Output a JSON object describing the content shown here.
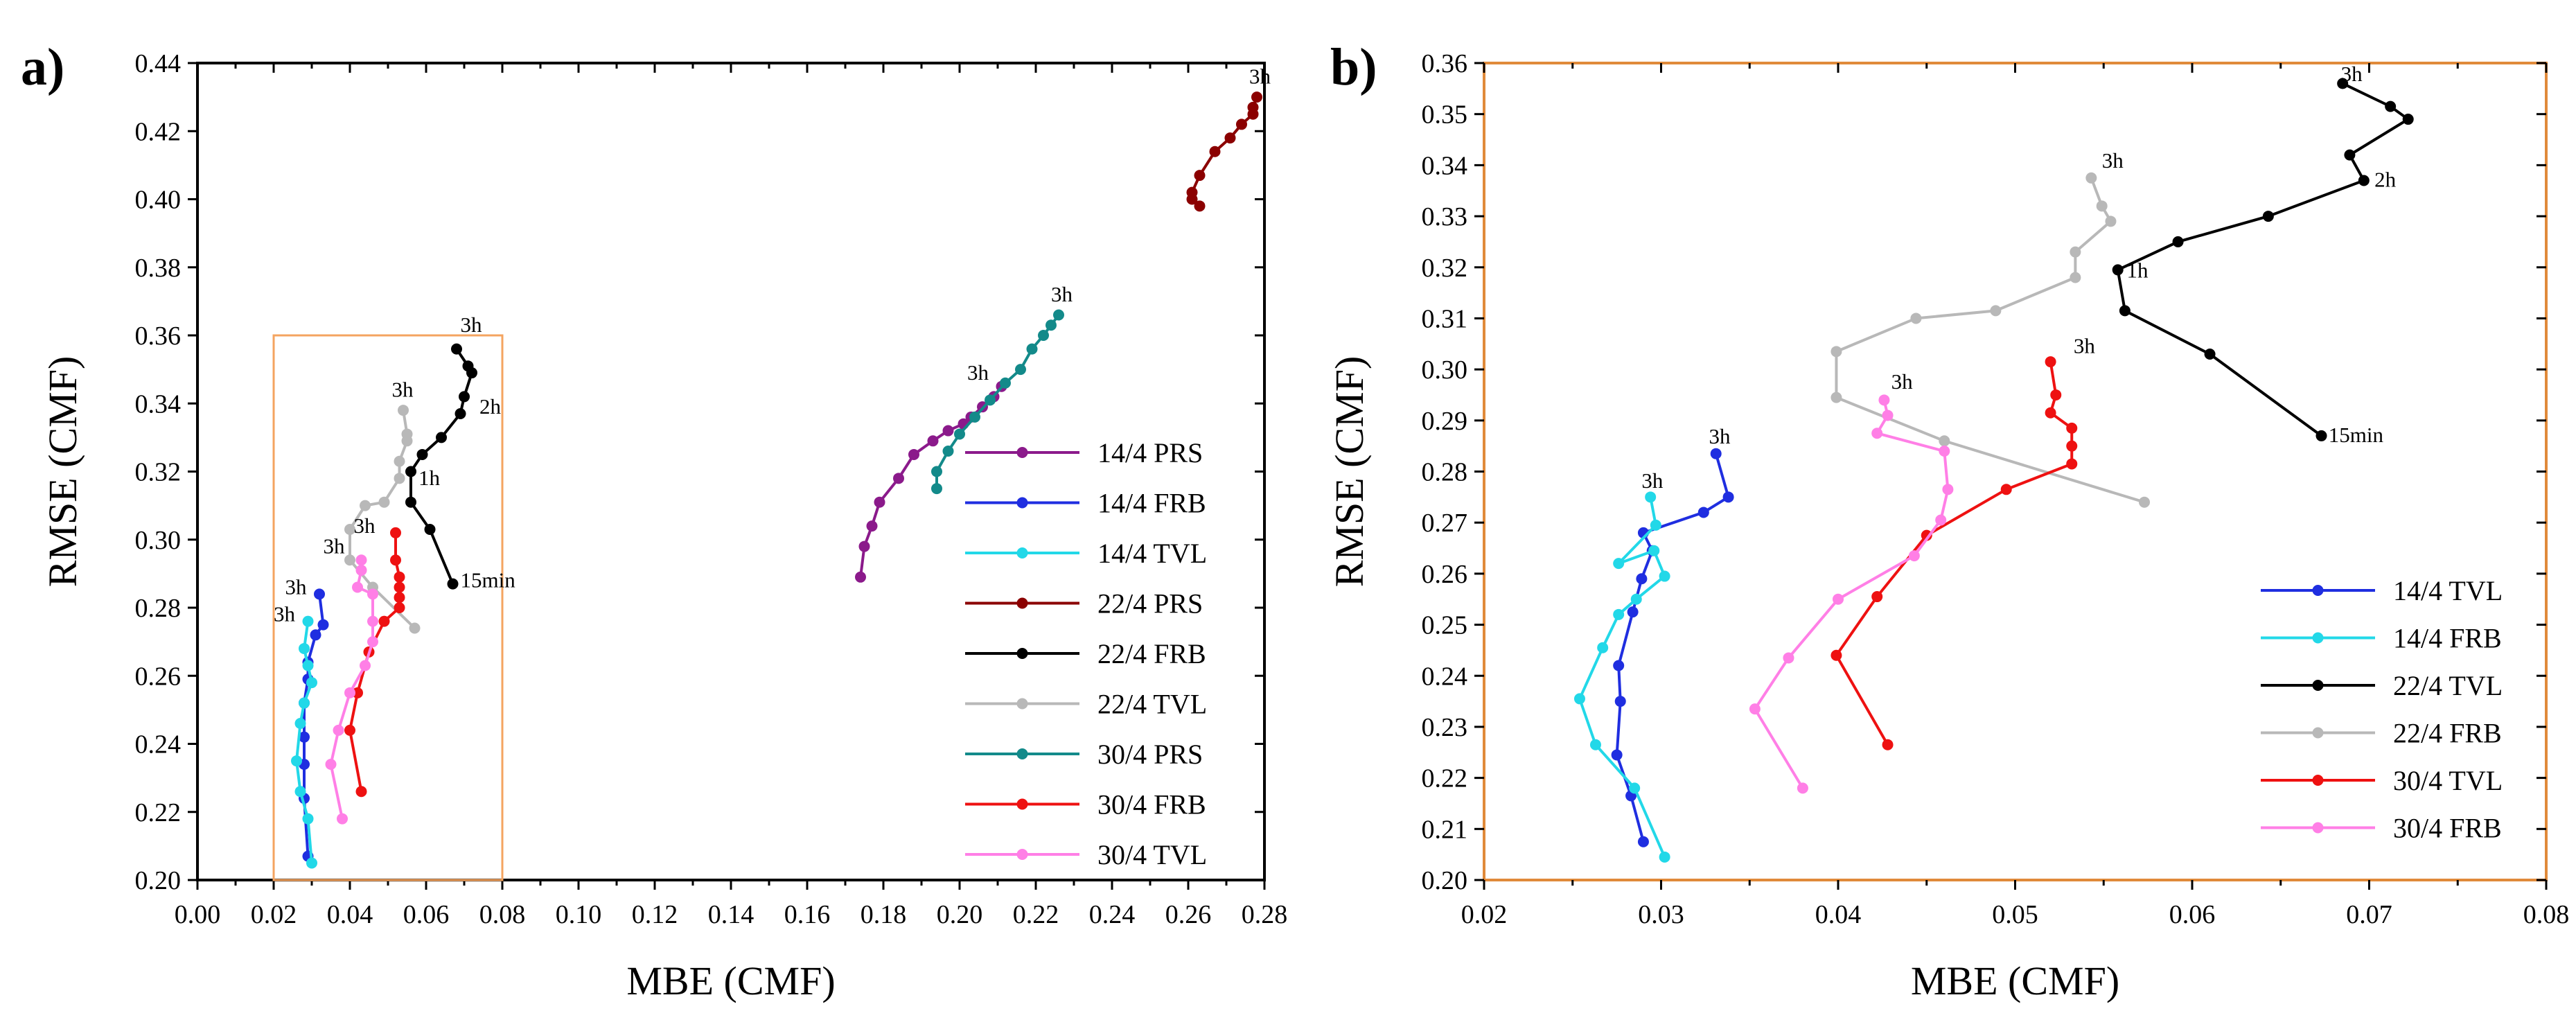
{
  "chart_data": [
    {
      "type": "line",
      "panel_label": "a)",
      "xlabel": "MBE (CMF)",
      "ylabel": "RMSE (CMF)",
      "xlim": [
        0,
        0.28
      ],
      "ylim": [
        0.2,
        0.44
      ],
      "xticks": [
        "0.00",
        "0.02",
        "0.04",
        "0.06",
        "0.08",
        "0.10",
        "0.12",
        "0.14",
        "0.16",
        "0.18",
        "0.20",
        "0.22",
        "0.24",
        "0.26",
        "0.28"
      ],
      "yticks": [
        "0.20",
        "0.22",
        "0.24",
        "0.26",
        "0.28",
        "0.30",
        "0.32",
        "0.34",
        "0.36",
        "0.38",
        "0.40",
        "0.42",
        "0.44"
      ],
      "legend_position": "bottom-right",
      "zoom_box": {
        "x": [
          0.02,
          0.08
        ],
        "y": [
          0.2,
          0.36
        ],
        "color": "#f4a460"
      },
      "series": [
        {
          "name": "14/4 PRS",
          "color": "#8b1a8b",
          "points": [
            [
              0.174,
              0.289
            ],
            [
              0.175,
              0.298
            ],
            [
              0.177,
              0.304
            ],
            [
              0.179,
              0.311
            ],
            [
              0.184,
              0.318
            ],
            [
              0.188,
              0.325
            ],
            [
              0.193,
              0.329
            ],
            [
              0.197,
              0.332
            ],
            [
              0.201,
              0.334
            ],
            [
              0.203,
              0.336
            ],
            [
              0.206,
              0.339
            ],
            [
              0.209,
              0.342
            ],
            [
              0.211,
              0.345
            ]
          ]
        },
        {
          "name": "14/4 FRB",
          "color": "#1f2ee0",
          "points": [
            [
              0.029,
              0.207
            ],
            [
              0.028,
              0.224
            ],
            [
              0.028,
              0.234
            ],
            [
              0.028,
              0.242
            ],
            [
              0.028,
              0.252
            ],
            [
              0.029,
              0.259
            ],
            [
              0.029,
              0.264
            ],
            [
              0.031,
              0.272
            ],
            [
              0.033,
              0.275
            ],
            [
              0.032,
              0.284
            ]
          ]
        },
        {
          "name": "14/4 TVL",
          "color": "#22d8e8",
          "points": [
            [
              0.03,
              0.205
            ],
            [
              0.029,
              0.218
            ],
            [
              0.027,
              0.226
            ],
            [
              0.026,
              0.235
            ],
            [
              0.027,
              0.246
            ],
            [
              0.028,
              0.252
            ],
            [
              0.03,
              0.258
            ],
            [
              0.029,
              0.263
            ],
            [
              0.028,
              0.268
            ],
            [
              0.029,
              0.276
            ]
          ]
        },
        {
          "name": "22/4 PRS",
          "color": "#8b0000",
          "points": [
            [
              0.263,
              0.398
            ],
            [
              0.261,
              0.4
            ],
            [
              0.261,
              0.402
            ],
            [
              0.263,
              0.407
            ],
            [
              0.267,
              0.414
            ],
            [
              0.271,
              0.418
            ],
            [
              0.274,
              0.422
            ],
            [
              0.277,
              0.425
            ],
            [
              0.277,
              0.427
            ],
            [
              0.278,
              0.43
            ]
          ]
        },
        {
          "name": "22/4 FRB",
          "color": "#000000",
          "points": [
            [
              0.067,
              0.287
            ],
            [
              0.061,
              0.303
            ],
            [
              0.056,
              0.311
            ],
            [
              0.056,
              0.32
            ],
            [
              0.059,
              0.325
            ],
            [
              0.064,
              0.33
            ],
            [
              0.069,
              0.337
            ],
            [
              0.07,
              0.342
            ],
            [
              0.072,
              0.349
            ],
            [
              0.071,
              0.351
            ],
            [
              0.068,
              0.356
            ]
          ]
        },
        {
          "name": "22/4 TVL",
          "color": "#b8b8b8",
          "points": [
            [
              0.057,
              0.274
            ],
            [
              0.046,
              0.286
            ],
            [
              0.04,
              0.294
            ],
            [
              0.04,
              0.303
            ],
            [
              0.044,
              0.31
            ],
            [
              0.049,
              0.311
            ],
            [
              0.053,
              0.318
            ],
            [
              0.053,
              0.323
            ],
            [
              0.055,
              0.329
            ],
            [
              0.055,
              0.331
            ],
            [
              0.054,
              0.338
            ]
          ]
        },
        {
          "name": "30/4 PRS",
          "color": "#138a8a",
          "points": [
            [
              0.194,
              0.315
            ],
            [
              0.194,
              0.32
            ],
            [
              0.197,
              0.326
            ],
            [
              0.2,
              0.331
            ],
            [
              0.204,
              0.336
            ],
            [
              0.208,
              0.341
            ],
            [
              0.212,
              0.346
            ],
            [
              0.216,
              0.35
            ],
            [
              0.219,
              0.356
            ],
            [
              0.222,
              0.36
            ],
            [
              0.224,
              0.363
            ],
            [
              0.226,
              0.366
            ]
          ]
        },
        {
          "name": "30/4 FRB",
          "color": "#ee1111",
          "points": [
            [
              0.043,
              0.226
            ],
            [
              0.04,
              0.244
            ],
            [
              0.042,
              0.255
            ],
            [
              0.045,
              0.267
            ],
            [
              0.049,
              0.276
            ],
            [
              0.053,
              0.28
            ],
            [
              0.053,
              0.283
            ],
            [
              0.053,
              0.286
            ],
            [
              0.053,
              0.289
            ],
            [
              0.052,
              0.294
            ],
            [
              0.052,
              0.302
            ]
          ]
        },
        {
          "name": "30/4 TVL",
          "color": "#ff7fe6",
          "points": [
            [
              0.038,
              0.218
            ],
            [
              0.035,
              0.234
            ],
            [
              0.037,
              0.244
            ],
            [
              0.04,
              0.255
            ],
            [
              0.044,
              0.263
            ],
            [
              0.046,
              0.27
            ],
            [
              0.046,
              0.276
            ],
            [
              0.046,
              0.284
            ],
            [
              0.042,
              0.286
            ],
            [
              0.043,
              0.291
            ],
            [
              0.043,
              0.294
            ]
          ]
        }
      ],
      "annotations": [
        {
          "text": "3h",
          "x": 0.276,
          "y": 0.434
        },
        {
          "text": "3h",
          "x": 0.224,
          "y": 0.37
        },
        {
          "text": "3h",
          "x": 0.202,
          "y": 0.347
        },
        {
          "text": "3h",
          "x": 0.069,
          "y": 0.361
        },
        {
          "text": "2h",
          "x": 0.074,
          "y": 0.337
        },
        {
          "text": "1h",
          "x": 0.058,
          "y": 0.316
        },
        {
          "text": "15min",
          "x": 0.069,
          "y": 0.286
        },
        {
          "text": "3h",
          "x": 0.051,
          "y": 0.342
        },
        {
          "text": "3h",
          "x": 0.041,
          "y": 0.302
        },
        {
          "text": "3h",
          "x": 0.033,
          "y": 0.296
        },
        {
          "text": "3h",
          "x": 0.023,
          "y": 0.284
        },
        {
          "text": "3h",
          "x": 0.02,
          "y": 0.276
        }
      ]
    },
    {
      "type": "line",
      "panel_label": "b)",
      "xlabel": "MBE (CMF)",
      "ylabel": "RMSE (CMF)",
      "xlim": [
        0.02,
        0.08
      ],
      "ylim": [
        0.2,
        0.36
      ],
      "xticks": [
        "0.02",
        "0.03",
        "0.04",
        "0.05",
        "0.06",
        "0.07",
        "0.08"
      ],
      "yticks": [
        "0.20",
        "0.21",
        "0.22",
        "0.23",
        "0.24",
        "0.25",
        "0.26",
        "0.27",
        "0.28",
        "0.29",
        "0.30",
        "0.31",
        "0.32",
        "0.33",
        "0.34",
        "0.35",
        "0.36"
      ],
      "legend_position": "bottom-right",
      "frame_color": "#e08a3a",
      "series": [
        {
          "name": "14/4 TVL",
          "color": "#1f2ee0",
          "points": [
            [
              0.029,
              0.2075
            ],
            [
              0.0283,
              0.2165
            ],
            [
              0.0275,
              0.2245
            ],
            [
              0.0277,
              0.235
            ],
            [
              0.0276,
              0.242
            ],
            [
              0.0284,
              0.2525
            ],
            [
              0.0289,
              0.259
            ],
            [
              0.0295,
              0.2645
            ],
            [
              0.029,
              0.268
            ],
            [
              0.0324,
              0.272
            ],
            [
              0.0338,
              0.275
            ],
            [
              0.0331,
              0.2835
            ]
          ]
        },
        {
          "name": "14/4 FRB",
          "color": "#22d8e8",
          "points": [
            [
              0.0302,
              0.2045
            ],
            [
              0.0285,
              0.218
            ],
            [
              0.0263,
              0.2265
            ],
            [
              0.0254,
              0.2355
            ],
            [
              0.0267,
              0.2455
            ],
            [
              0.0276,
              0.252
            ],
            [
              0.0286,
              0.255
            ],
            [
              0.0302,
              0.2595
            ],
            [
              0.0296,
              0.2645
            ],
            [
              0.0276,
              0.262
            ],
            [
              0.0297,
              0.2695
            ],
            [
              0.0294,
              0.275
            ]
          ]
        },
        {
          "name": "22/4 TVL",
          "color": "#000000",
          "points": [
            [
              0.0673,
              0.287
            ],
            [
              0.061,
              0.303
            ],
            [
              0.0562,
              0.3115
            ],
            [
              0.0558,
              0.3195
            ],
            [
              0.0592,
              0.325
            ],
            [
              0.0643,
              0.33
            ],
            [
              0.0697,
              0.337
            ],
            [
              0.0689,
              0.342
            ],
            [
              0.0722,
              0.349
            ],
            [
              0.0712,
              0.3515
            ],
            [
              0.0685,
              0.356
            ]
          ]
        },
        {
          "name": "22/4 FRB",
          "color": "#b8b8b8",
          "points": [
            [
              0.0573,
              0.274
            ],
            [
              0.046,
              0.286
            ],
            [
              0.0399,
              0.2945
            ],
            [
              0.0399,
              0.3035
            ],
            [
              0.0444,
              0.31
            ],
            [
              0.0489,
              0.3115
            ],
            [
              0.0534,
              0.318
            ],
            [
              0.0534,
              0.323
            ],
            [
              0.0554,
              0.329
            ],
            [
              0.0549,
              0.332
            ],
            [
              0.0543,
              0.3375
            ]
          ]
        },
        {
          "name": "30/4 TVL",
          "color": "#ee1111",
          "points": [
            [
              0.0428,
              0.2265
            ],
            [
              0.0399,
              0.244
            ],
            [
              0.0422,
              0.2555
            ],
            [
              0.045,
              0.2675
            ],
            [
              0.0495,
              0.2765
            ],
            [
              0.0532,
              0.2815
            ],
            [
              0.0532,
              0.285
            ],
            [
              0.0532,
              0.2885
            ],
            [
              0.052,
              0.2915
            ],
            [
              0.0523,
              0.295
            ],
            [
              0.052,
              0.3015
            ]
          ]
        },
        {
          "name": "30/4 FRB",
          "color": "#ff7fe6",
          "points": [
            [
              0.038,
              0.218
            ],
            [
              0.0353,
              0.2335
            ],
            [
              0.0372,
              0.2435
            ],
            [
              0.04,
              0.255
            ],
            [
              0.0443,
              0.2635
            ],
            [
              0.0458,
              0.2705
            ],
            [
              0.0462,
              0.2765
            ],
            [
              0.046,
              0.284
            ],
            [
              0.0422,
              0.2875
            ],
            [
              0.0428,
              0.291
            ],
            [
              0.0426,
              0.294
            ]
          ]
        }
      ],
      "annotations": [
        {
          "text": "3h",
          "x": 0.0684,
          "y": 0.3565
        },
        {
          "text": "2h",
          "x": 0.0703,
          "y": 0.3358
        },
        {
          "text": "1h",
          "x": 0.0563,
          "y": 0.318
        },
        {
          "text": "15min",
          "x": 0.0677,
          "y": 0.2858
        },
        {
          "text": "3h",
          "x": 0.0549,
          "y": 0.3395
        },
        {
          "text": "3h",
          "x": 0.0533,
          "y": 0.3032
        },
        {
          "text": "3h",
          "x": 0.043,
          "y": 0.2962
        },
        {
          "text": "3h",
          "x": 0.0327,
          "y": 0.2855
        },
        {
          "text": "3h",
          "x": 0.0289,
          "y": 0.2768
        }
      ]
    }
  ]
}
